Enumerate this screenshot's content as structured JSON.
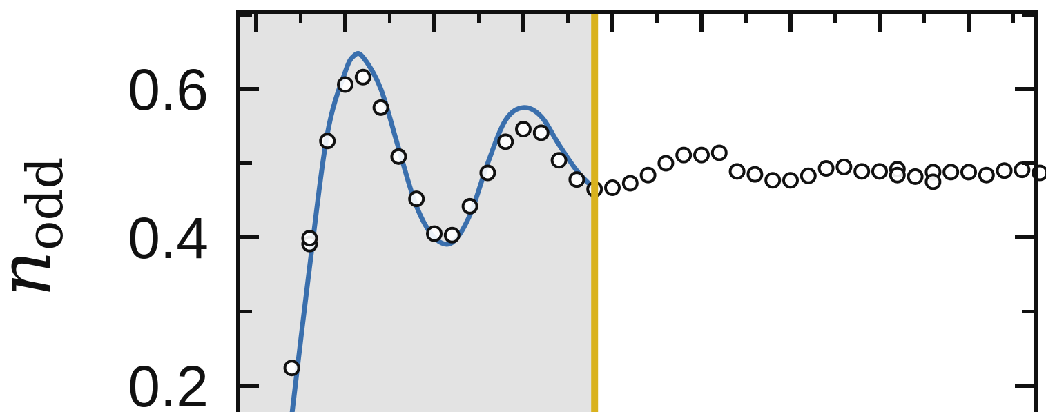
{
  "chart_data": {
    "type": "scatter",
    "xlabel": "",
    "ylabel": "n",
    "ylabel_subscript": "odd",
    "xlim": [
      0,
      46
    ],
    "ylim": [
      0.176,
      0.707
    ],
    "yticks": [
      {
        "value": 0.6,
        "label": "0.6"
      },
      {
        "value": 0.4,
        "label": "0.4"
      },
      {
        "value": 0.2,
        "label": "0.2"
      }
    ],
    "y_minor_ticks": [
      0.3,
      0.5,
      0.7
    ],
    "x_ticks_top": [
      0,
      5,
      10,
      15,
      20,
      25,
      30,
      35,
      40,
      45
    ],
    "x_minor_ticks_top": [
      2.5,
      7.5,
      12.5,
      17.5,
      22.5,
      27.5,
      32.5,
      37.5,
      42.5
    ],
    "shaded_region": {
      "x": [
        0,
        19
      ],
      "color": "#e3e3e3"
    },
    "divider": {
      "x": 19,
      "color": "#d9b21e"
    },
    "series": [
      {
        "kind": "markers",
        "marker": "open-circle",
        "color": "#111111",
        "points": [
          [
            2,
            0.224
          ],
          [
            3,
            0.391
          ],
          [
            3,
            0.399
          ],
          [
            4,
            0.53
          ],
          [
            5,
            0.606
          ],
          [
            6,
            0.616
          ],
          [
            7,
            0.575
          ],
          [
            8,
            0.509
          ],
          [
            9,
            0.452
          ],
          [
            10,
            0.405
          ],
          [
            11,
            0.403
          ],
          [
            12,
            0.442
          ],
          [
            13,
            0.487
          ],
          [
            14,
            0.529
          ],
          [
            15,
            0.546
          ],
          [
            16,
            0.541
          ],
          [
            17,
            0.504
          ],
          [
            18,
            0.478
          ],
          [
            19,
            0.465
          ],
          [
            20,
            0.467
          ],
          [
            21,
            0.473
          ],
          [
            22,
            0.484
          ],
          [
            23,
            0.5
          ],
          [
            24,
            0.511
          ],
          [
            25,
            0.511
          ],
          [
            26,
            0.514
          ],
          [
            27,
            0.489
          ],
          [
            28,
            0.485
          ],
          [
            29,
            0.477
          ],
          [
            30,
            0.477
          ],
          [
            31,
            0.483
          ],
          [
            32,
            0.493
          ],
          [
            33,
            0.495
          ],
          [
            34,
            0.489
          ],
          [
            35,
            0.489
          ],
          [
            36,
            0.492
          ],
          [
            36,
            0.484
          ],
          [
            37,
            0.482
          ],
          [
            38,
            0.488
          ],
          [
            38,
            0.475
          ],
          [
            39,
            0.488
          ],
          [
            40,
            0.488
          ],
          [
            41,
            0.484
          ],
          [
            42,
            0.49
          ],
          [
            43,
            0.491
          ],
          [
            44,
            0.487
          ],
          [
            45,
            0.485
          ]
        ]
      },
      {
        "kind": "line",
        "color": "#3a6fad",
        "points": [
          [
            2,
            0.16
          ],
          [
            3,
            0.36
          ],
          [
            4,
            0.54
          ],
          [
            5,
            0.623
          ],
          [
            5.5,
            0.645
          ],
          [
            6,
            0.643
          ],
          [
            7,
            0.6
          ],
          [
            8,
            0.52
          ],
          [
            9,
            0.442
          ],
          [
            10,
            0.4
          ],
          [
            11,
            0.393
          ],
          [
            12,
            0.43
          ],
          [
            13,
            0.5
          ],
          [
            14,
            0.558
          ],
          [
            15,
            0.575
          ],
          [
            16,
            0.563
          ],
          [
            17,
            0.525
          ],
          [
            18,
            0.49
          ],
          [
            19,
            0.465
          ]
        ]
      }
    ]
  }
}
